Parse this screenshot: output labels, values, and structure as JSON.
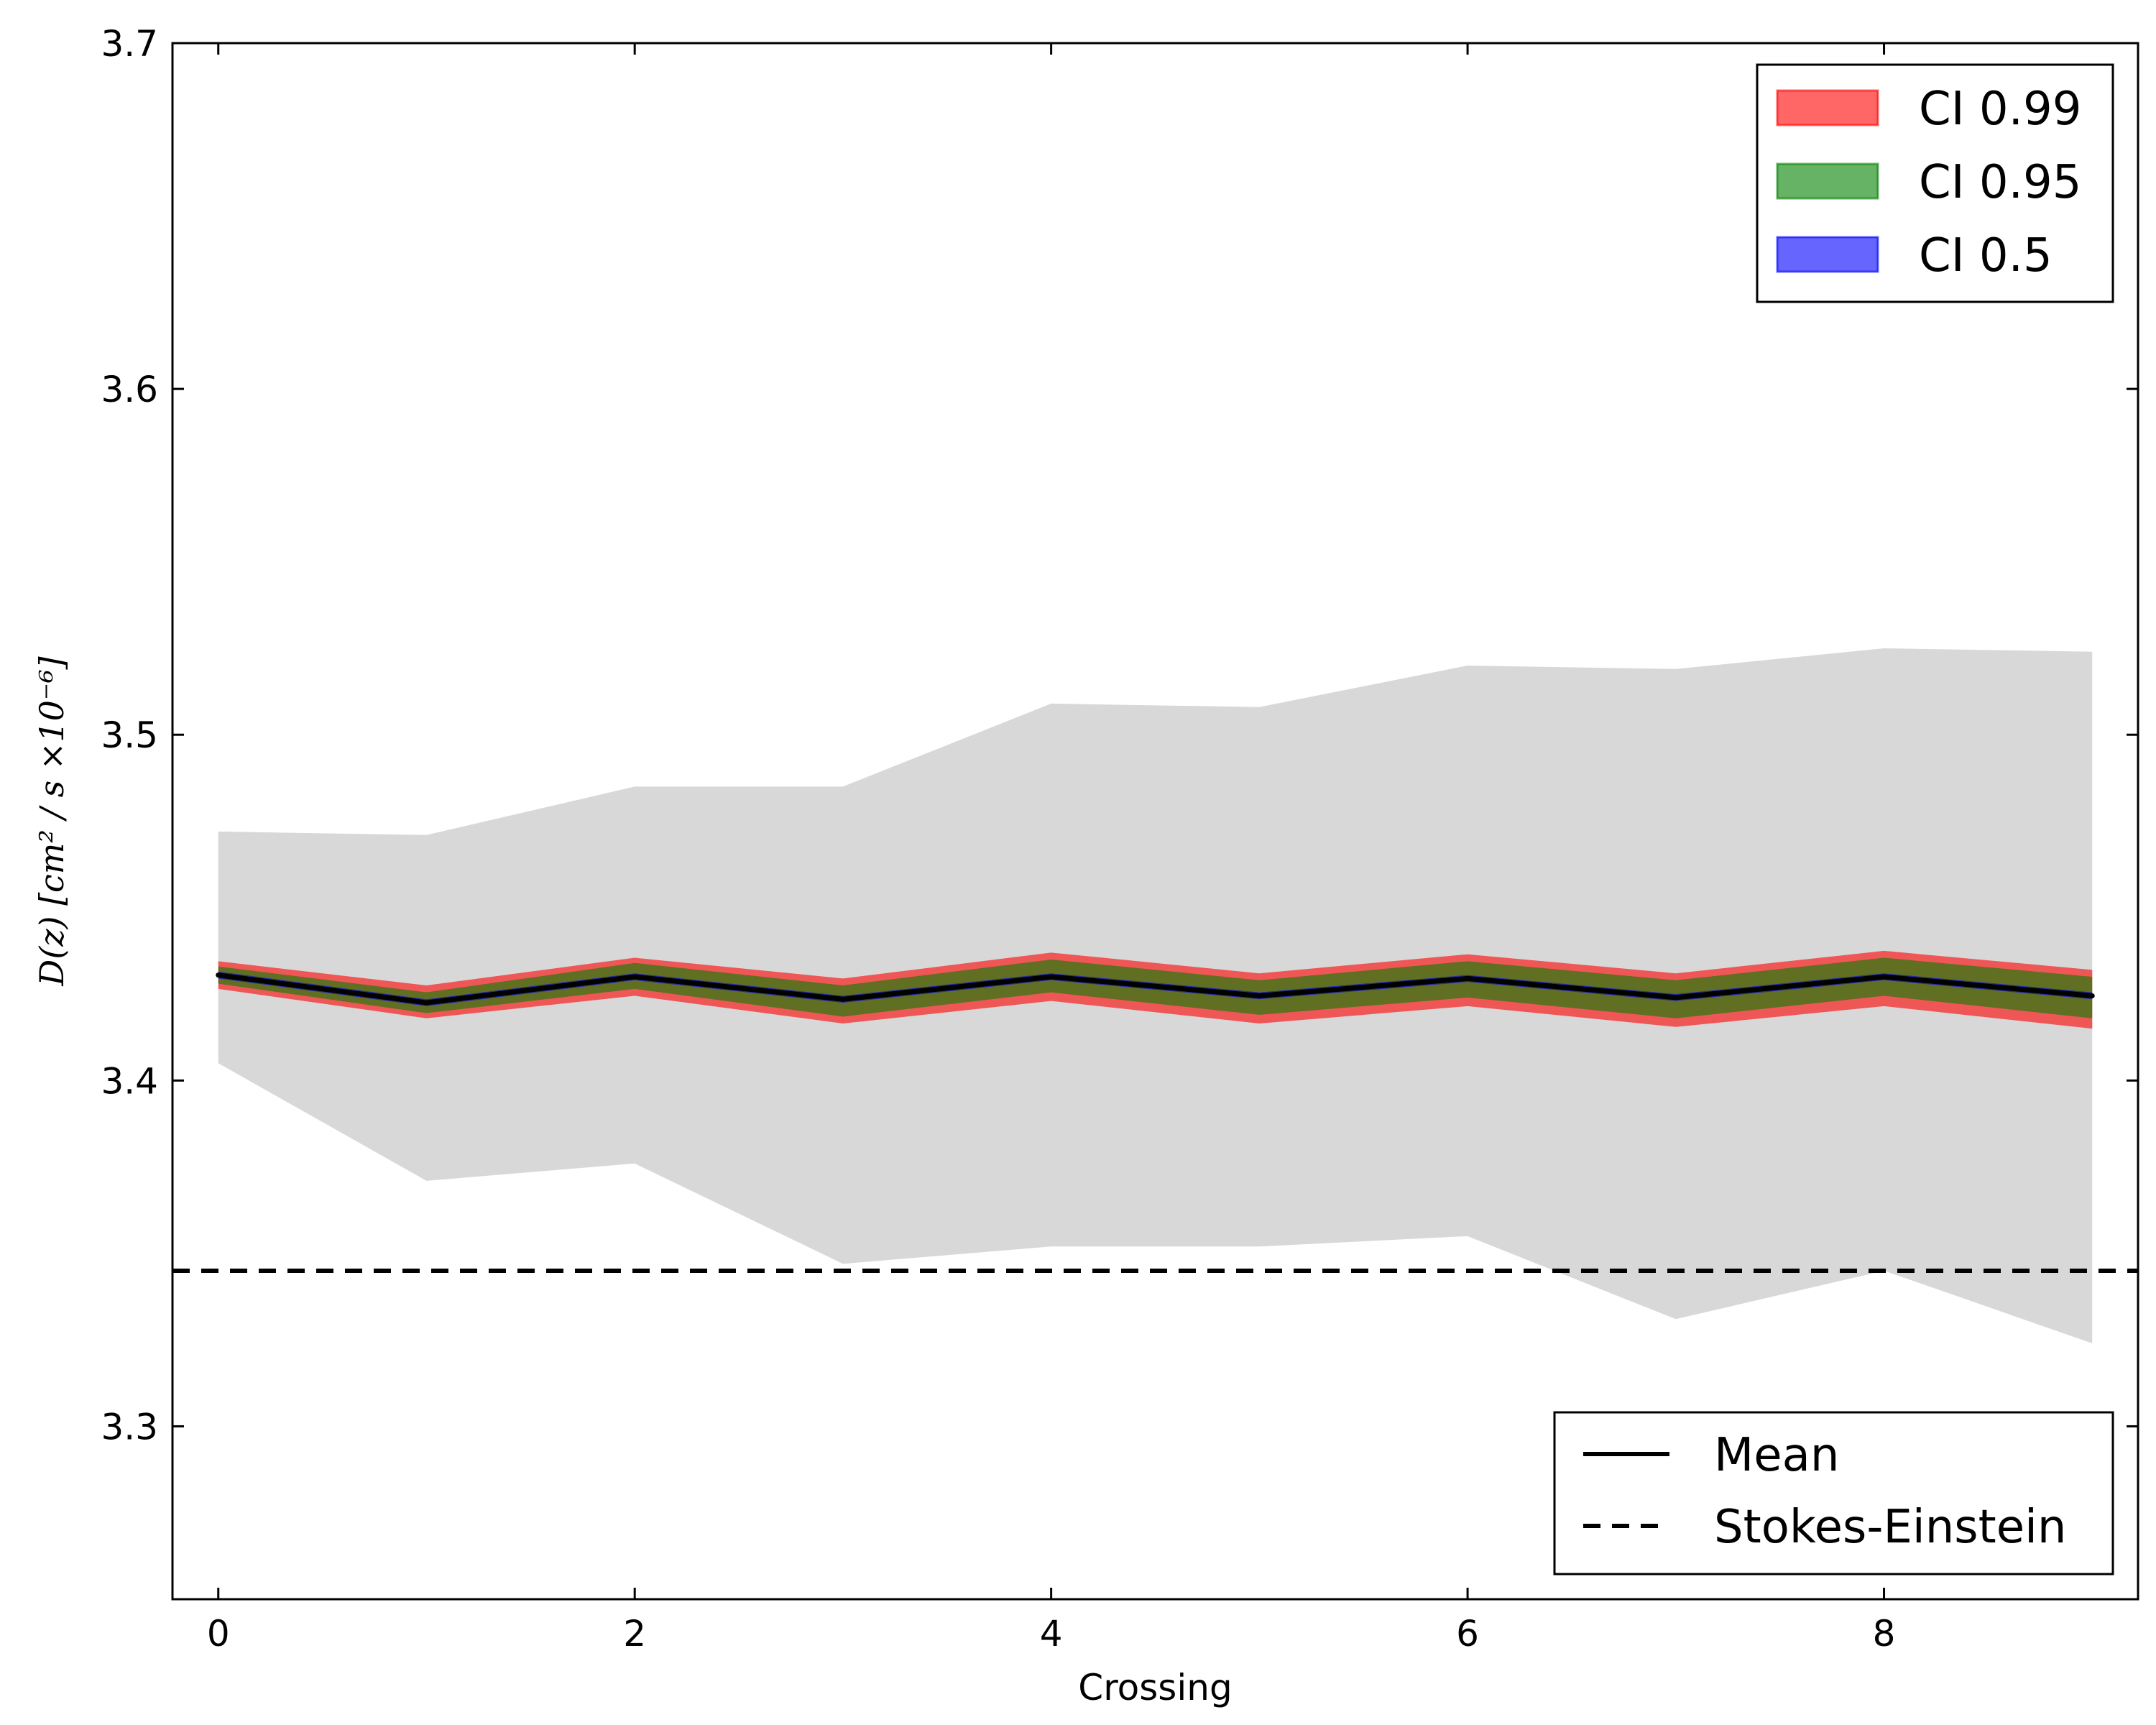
{
  "chart_data": {
    "type": "line",
    "xlabel": "Crossing",
    "ylabel": "D(z) [cm² / s ×10⁻⁶]",
    "xlim": [
      -0.22,
      9.22
    ],
    "ylim": [
      3.25,
      3.7
    ],
    "xticks": [
      0,
      2,
      4,
      6,
      8
    ],
    "yticks": [
      3.3,
      3.4,
      3.5,
      3.6,
      3.7
    ],
    "grid": false,
    "x": [
      0,
      1,
      2,
      3,
      4,
      5,
      6,
      7,
      8,
      9
    ],
    "mean": {
      "name": "Mean",
      "values": [
        3.4305,
        3.4225,
        3.43,
        3.4235,
        3.43,
        3.4245,
        3.4295,
        3.424,
        3.43,
        3.4245
      ],
      "color": "#000000"
    },
    "reference_line": {
      "name": "Stokes-Einstein",
      "value": 3.345,
      "style": "dashed",
      "color": "#000000"
    },
    "spread_band": {
      "lower": [
        3.405,
        3.371,
        3.376,
        3.347,
        3.352,
        3.352,
        3.355,
        3.331,
        3.345,
        3.324
      ],
      "upper": [
        3.472,
        3.471,
        3.485,
        3.485,
        3.509,
        3.508,
        3.52,
        3.519,
        3.525,
        3.524
      ],
      "color": "#d8d8d8"
    },
    "bands": [
      {
        "name": "CI 0.99",
        "color": "#ff0000",
        "lower": [
          3.4265,
          3.418,
          3.4245,
          3.4165,
          3.423,
          3.4165,
          3.4215,
          3.4155,
          3.4215,
          3.415
        ],
        "upper": [
          3.4345,
          3.4275,
          3.4355,
          3.4295,
          3.437,
          3.431,
          3.4365,
          3.431,
          3.4375,
          3.432
        ]
      },
      {
        "name": "CI 0.95",
        "color": "#008000",
        "lower": [
          3.428,
          3.4195,
          3.4265,
          3.4185,
          3.4255,
          3.419,
          3.424,
          3.418,
          3.4245,
          3.418
        ],
        "upper": [
          3.433,
          3.4255,
          3.434,
          3.4275,
          3.435,
          3.429,
          3.4345,
          3.429,
          3.4355,
          3.43
        ]
      },
      {
        "name": "CI 0.5",
        "color": "#0000ff",
        "lower": [
          3.4295,
          3.4215,
          3.429,
          3.4225,
          3.429,
          3.4235,
          3.4285,
          3.423,
          3.429,
          3.4235
        ],
        "upper": [
          3.4315,
          3.4235,
          3.431,
          3.4245,
          3.431,
          3.4255,
          3.4305,
          3.425,
          3.431,
          3.4255
        ]
      }
    ],
    "legend_top": {
      "placement": "top-right",
      "entries": [
        "CI 0.99",
        "CI 0.95",
        "CI 0.5"
      ]
    },
    "legend_bottom": {
      "placement": "bottom-right",
      "entries": [
        "Mean",
        "Stokes-Einstein"
      ]
    }
  }
}
